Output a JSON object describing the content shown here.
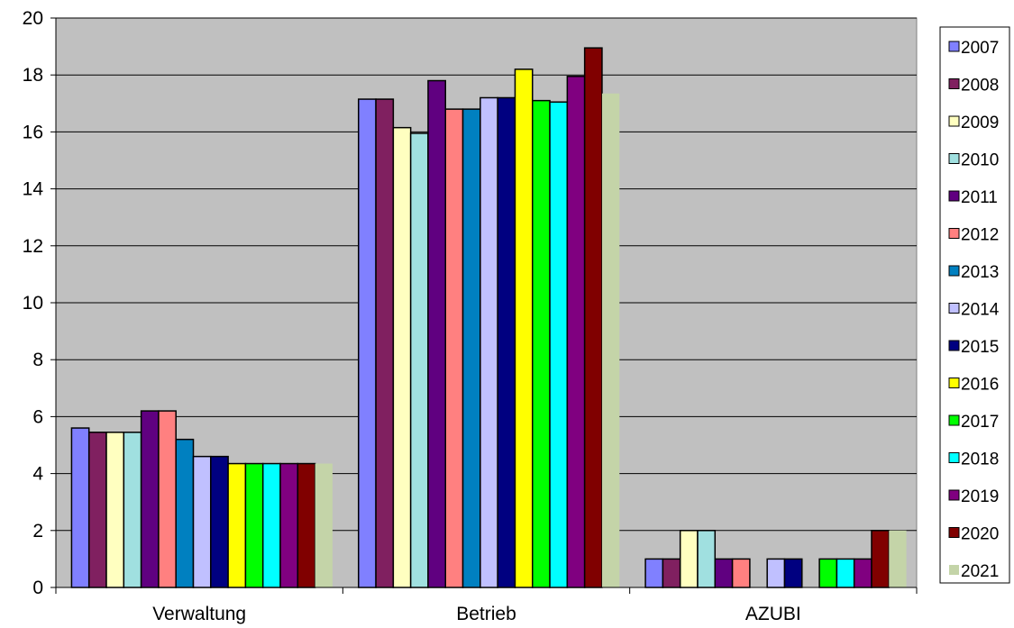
{
  "chart_data": {
    "type": "bar",
    "categories": [
      "Verwaltung",
      "Betrieb",
      "AZUBI"
    ],
    "ylim": [
      0,
      20
    ],
    "yticks": [
      0,
      2,
      4,
      6,
      8,
      10,
      12,
      14,
      16,
      18,
      20
    ],
    "grid": true,
    "legend_position": "right",
    "plot_background": "#c0c0c0",
    "series": [
      {
        "name": "2007",
        "color": "#8080ff",
        "values": [
          5.6,
          17.15,
          1
        ]
      },
      {
        "name": "2008",
        "color": "#802060",
        "values": [
          5.45,
          17.15,
          1
        ]
      },
      {
        "name": "2009",
        "color": "#ffffc0",
        "values": [
          5.45,
          16.15,
          2
        ]
      },
      {
        "name": "2010",
        "color": "#a0e0e0",
        "values": [
          5.45,
          15.95,
          2
        ]
      },
      {
        "name": "2011",
        "color": "#600080",
        "values": [
          6.2,
          17.8,
          1
        ]
      },
      {
        "name": "2012",
        "color": "#ff8080",
        "values": [
          6.2,
          16.8,
          1
        ]
      },
      {
        "name": "2013",
        "color": "#0080c0",
        "values": [
          5.2,
          16.8,
          0
        ]
      },
      {
        "name": "2014",
        "color": "#c0c0ff",
        "values": [
          4.6,
          17.2,
          1
        ]
      },
      {
        "name": "2015",
        "color": "#000080",
        "values": [
          4.6,
          17.2,
          1
        ]
      },
      {
        "name": "2016",
        "color": "#ffff00",
        "values": [
          4.35,
          18.2,
          0
        ]
      },
      {
        "name": "2017",
        "color": "#00ff00",
        "values": [
          4.35,
          17.1,
          1
        ]
      },
      {
        "name": "2018",
        "color": "#00ffff",
        "values": [
          4.35,
          17.05,
          1
        ]
      },
      {
        "name": "2019",
        "color": "#800080",
        "values": [
          4.35,
          17.95,
          1
        ]
      },
      {
        "name": "2020",
        "color": "#800000",
        "values": [
          4.35,
          18.95,
          2
        ]
      },
      {
        "name": "2021",
        "color": "#c4d4a8",
        "values": [
          4.35,
          17.35,
          2
        ]
      }
    ]
  }
}
